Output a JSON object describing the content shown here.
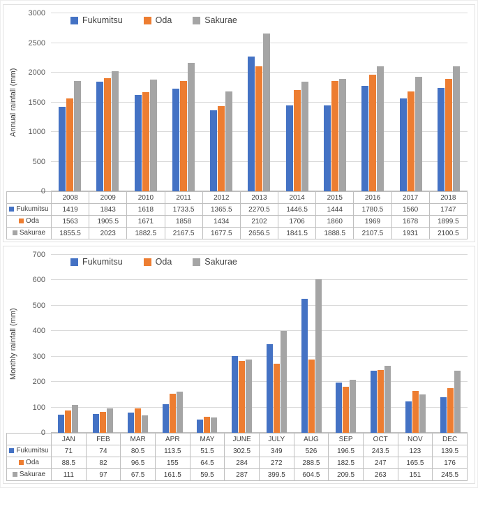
{
  "chart_data": [
    {
      "type": "bar",
      "title": "",
      "ylabel": "Annual rainfall (mm)",
      "xlabel": "",
      "ylim": [
        0,
        3000
      ],
      "yticks": [
        0,
        500,
        1000,
        1500,
        2000,
        2500,
        3000
      ],
      "grid": true,
      "legend_position": "top",
      "categories": [
        "2008",
        "2009",
        "2010",
        "2011",
        "2012",
        "2013",
        "2014",
        "2015",
        "2016",
        "2017",
        "2018"
      ],
      "series": [
        {
          "name": "Fukumitsu",
          "color": "#4472C4",
          "values": [
            1419,
            1843,
            1618,
            1733.5,
            1365.5,
            2270.5,
            1446.5,
            1444,
            1780.5,
            1560,
            1747
          ]
        },
        {
          "name": "Oda",
          "color": "#ED7D31",
          "values": [
            1563,
            1905.5,
            1671,
            1858,
            1434,
            2102,
            1706,
            1860,
            1969,
            1678,
            1899.5
          ]
        },
        {
          "name": "Sakurae",
          "color": "#A5A5A5",
          "values": [
            1855.5,
            2023,
            1882.5,
            2167.5,
            1677.5,
            2656.5,
            1841.5,
            1888.5,
            2107.5,
            1931,
            2100.5
          ]
        }
      ]
    },
    {
      "type": "bar",
      "title": "",
      "ylabel": "Monthly rainfall (mm)",
      "xlabel": "",
      "ylim": [
        0,
        700
      ],
      "yticks": [
        0,
        100,
        200,
        300,
        400,
        500,
        600,
        700
      ],
      "grid": true,
      "legend_position": "top",
      "categories": [
        "JAN",
        "FEB",
        "MAR",
        "APR",
        "MAY",
        "JUNE",
        "JULY",
        "AUG",
        "SEP",
        "OCT",
        "NOV",
        "DEC"
      ],
      "series": [
        {
          "name": "Fukumitsu",
          "color": "#4472C4",
          "values": [
            71,
            74,
            80.5,
            113.5,
            51.5,
            302.5,
            349,
            526,
            196.5,
            243.5,
            123,
            139.5
          ]
        },
        {
          "name": "Oda",
          "color": "#ED7D31",
          "values": [
            88.5,
            82,
            96.5,
            155,
            64.5,
            284,
            272,
            288.5,
            182.5,
            247,
            165.5,
            176
          ]
        },
        {
          "name": "Sakurae",
          "color": "#A5A5A5",
          "values": [
            111,
            97,
            67.5,
            161.5,
            59.5,
            287,
            399.5,
            604.5,
            209.5,
            263,
            151,
            245.5
          ]
        }
      ]
    }
  ]
}
